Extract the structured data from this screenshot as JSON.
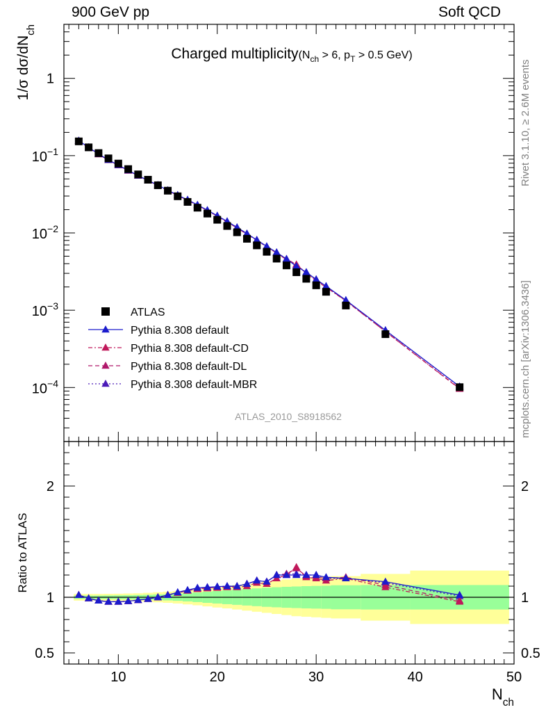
{
  "header": {
    "left": "900 GeV pp",
    "right": "Soft QCD"
  },
  "side_labels": {
    "rivet": "Rivet 3.1.10, ≥ 2.6M events",
    "source": "mcplots.cern.ch [arXiv:1306.3436]"
  },
  "chart_data": [
    {
      "type": "scatter",
      "panel": "main",
      "title": "Charged multiplicity",
      "title_cuts": "(N_ch > 6, p_T > 0.5 GeV)",
      "ylabel": "1/σ dσ/dN_ch",
      "yscale": "log",
      "ylim": [
        2e-05,
        5
      ],
      "xlim": [
        4.5,
        50
      ],
      "watermark": "ATLAS_2010_S8918562",
      "legend_position": "lower-left",
      "x": [
        6,
        7,
        8,
        9,
        10,
        11,
        12,
        13,
        14,
        15,
        16,
        17,
        18,
        19,
        20,
        21,
        22,
        23,
        24,
        25,
        26,
        27,
        28,
        29,
        30,
        31,
        33,
        37,
        44.5
      ],
      "series": [
        {
          "name": "ATLAS",
          "color": "#000000",
          "marker": "square",
          "values": [
            0.153,
            0.128,
            0.108,
            0.0922,
            0.079,
            0.067,
            0.0572,
            0.0488,
            0.0414,
            0.0352,
            0.0298,
            0.0252,
            0.0212,
            0.0178,
            0.0148,
            0.0123,
            0.0102,
            0.0084,
            0.0069,
            0.0057,
            0.00465,
            0.0038,
            0.0031,
            0.00255,
            0.0021,
            0.00173,
            0.00115,
            0.00049,
            0.000101
          ]
        },
        {
          "name": "Pythia 8.308 default",
          "color": "#1b1bcc",
          "marker": "triangle",
          "line": "solid",
          "values": [
            0.156,
            0.128,
            0.105,
            0.088,
            0.0755,
            0.0645,
            0.0552,
            0.0477,
            0.0416,
            0.0356,
            0.0309,
            0.0268,
            0.0231,
            0.0197,
            0.0167,
            0.0141,
            0.0118,
            0.0098,
            0.0081,
            0.0067,
            0.0056,
            0.0046,
            0.0037,
            0.0031,
            0.0025,
            0.00205,
            0.00135,
            0.00055,
            0.000103
          ]
        },
        {
          "name": "Pythia 8.308 default-CD",
          "color": "#c0185a",
          "marker": "triangle",
          "line": "dashdot",
          "values": [
            0.155,
            0.127,
            0.104,
            0.0875,
            0.075,
            0.064,
            0.055,
            0.0475,
            0.0414,
            0.0353,
            0.0306,
            0.0265,
            0.0228,
            0.0194,
            0.0164,
            0.0138,
            0.0116,
            0.0096,
            0.008,
            0.0066,
            0.0055,
            0.0045,
            0.0039,
            0.003,
            0.0024,
            0.00198,
            0.00132,
            0.00053,
            9.7e-05
          ]
        },
        {
          "name": "Pythia 8.308 default-DL",
          "color": "#b0186a",
          "marker": "triangle",
          "line": "dashed",
          "values": [
            0.155,
            0.127,
            0.104,
            0.0875,
            0.075,
            0.064,
            0.055,
            0.0475,
            0.0414,
            0.0354,
            0.0307,
            0.0266,
            0.0229,
            0.0195,
            0.0165,
            0.0139,
            0.0117,
            0.0097,
            0.0081,
            0.0066,
            0.0055,
            0.0046,
            0.0039,
            0.003,
            0.0025,
            0.002,
            0.00133,
            0.00053,
            9.6e-05
          ]
        },
        {
          "name": "Pythia 8.308 default-MBR",
          "color": "#4b1bb8",
          "marker": "triangle",
          "line": "dotted",
          "values": [
            0.156,
            0.128,
            0.105,
            0.088,
            0.0755,
            0.0645,
            0.0552,
            0.0477,
            0.0415,
            0.0355,
            0.0308,
            0.0268,
            0.023,
            0.0196,
            0.0167,
            0.0141,
            0.0118,
            0.0098,
            0.0081,
            0.0067,
            0.0056,
            0.0046,
            0.0038,
            0.0031,
            0.0025,
            0.00203,
            0.00134,
            0.00055,
            0.000102
          ]
        }
      ]
    },
    {
      "type": "line",
      "panel": "ratio",
      "ylabel": "Ratio to ATLAS",
      "xlabel": "N_ch",
      "ylim": [
        0.4,
        2.4
      ],
      "xlim": [
        4.5,
        50
      ],
      "x_ticks": [
        10,
        20,
        30,
        40,
        50
      ],
      "y_ticks": [
        0.5,
        1,
        2
      ],
      "reference": 1,
      "bands": {
        "x_edges": [
          5.5,
          6.5,
          7.5,
          8.5,
          9.5,
          10.5,
          11.5,
          12.5,
          13.5,
          14.5,
          15.5,
          16.5,
          17.5,
          18.5,
          19.5,
          20.5,
          21.5,
          22.5,
          23.5,
          24.5,
          25.5,
          26.5,
          27.5,
          28.5,
          29.5,
          30.5,
          31.5,
          34.5,
          39.5,
          49.5
        ],
        "stat_color": "#99ff99",
        "syst_color": "#ffff99",
        "inner_half_width": [
          0.015,
          0.015,
          0.015,
          0.016,
          0.017,
          0.018,
          0.02,
          0.022,
          0.025,
          0.028,
          0.032,
          0.037,
          0.043,
          0.05,
          0.056,
          0.062,
          0.068,
          0.074,
          0.08,
          0.086,
          0.09,
          0.094,
          0.097,
          0.1,
          0.102,
          0.104,
          0.108,
          0.11,
          0.11
        ],
        "outer_half_width": [
          0.03,
          0.03,
          0.03,
          0.031,
          0.032,
          0.034,
          0.036,
          0.04,
          0.045,
          0.05,
          0.056,
          0.064,
          0.072,
          0.082,
          0.092,
          0.1,
          0.11,
          0.12,
          0.13,
          0.14,
          0.15,
          0.16,
          0.17,
          0.175,
          0.18,
          0.185,
          0.19,
          0.21,
          0.24
        ]
      },
      "series": [
        {
          "name": "Pythia 8.308 default",
          "values": [
            1.02,
            0.99,
            0.97,
            0.96,
            0.96,
            0.965,
            0.975,
            0.985,
            1.0,
            1.02,
            1.045,
            1.065,
            1.085,
            1.09,
            1.095,
            1.1,
            1.1,
            1.12,
            1.15,
            1.14,
            1.2,
            1.2,
            1.2,
            1.2,
            1.2,
            1.18,
            1.17,
            1.14,
            1.02
          ]
        },
        {
          "name": "Pythia 8.308 default-CD",
          "values": [
            1.02,
            0.99,
            0.97,
            0.96,
            0.96,
            0.965,
            0.975,
            0.985,
            1.0,
            1.02,
            1.04,
            1.06,
            1.075,
            1.08,
            1.085,
            1.09,
            1.09,
            1.1,
            1.13,
            1.12,
            1.17,
            1.2,
            1.27,
            1.18,
            1.17,
            1.15,
            1.17,
            1.09,
            0.96
          ]
        },
        {
          "name": "Pythia 8.308 default-DL",
          "values": [
            1.02,
            0.99,
            0.97,
            0.96,
            0.96,
            0.965,
            0.975,
            0.985,
            1.0,
            1.02,
            1.04,
            1.06,
            1.075,
            1.085,
            1.09,
            1.095,
            1.1,
            1.12,
            1.15,
            1.14,
            1.2,
            1.21,
            1.26,
            1.19,
            1.18,
            1.17,
            1.18,
            1.11,
            0.97
          ]
        },
        {
          "name": "Pythia 8.308 default-MBR",
          "values": [
            1.02,
            0.99,
            0.97,
            0.96,
            0.96,
            0.965,
            0.975,
            0.985,
            1.0,
            1.02,
            1.04,
            1.06,
            1.08,
            1.09,
            1.095,
            1.1,
            1.1,
            1.12,
            1.15,
            1.14,
            1.2,
            1.21,
            1.21,
            1.2,
            1.2,
            1.17,
            1.17,
            1.13,
            1.01
          ]
        }
      ]
    }
  ]
}
